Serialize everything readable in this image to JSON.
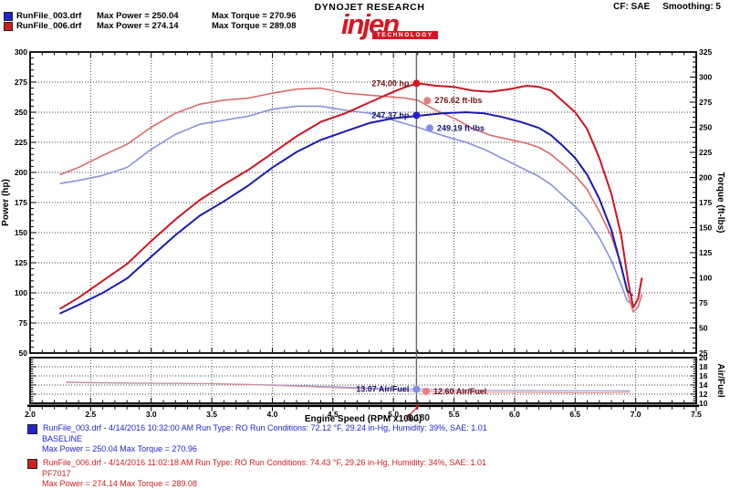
{
  "header": {
    "brand_top": "DYNOJET RESEARCH",
    "brand_name": "injen",
    "brand_sub": "TECHNOLOGY",
    "cf_label": "CF: SAE",
    "smoothing_label": "Smoothing: 5",
    "legend": [
      {
        "file": "RunFile_003.drf",
        "max_power": "Max Power = 250.04",
        "max_torque": "Max Torque = 270.96",
        "color": "#2026cc"
      },
      {
        "file": "RunFile_006.drf",
        "max_power": "Max Power = 274.14",
        "max_torque": "Max Torque = 289.08",
        "color": "#cc2020"
      }
    ]
  },
  "footer": {
    "runs": [
      {
        "color": "#2026cc",
        "file_line": "RunFile_003.drf - 4/14/2016 10:32:00 AM  Run Type: RO  Run Conditions: 72.12 °F, 29.24 in-Hg,  Humidity:  39%, SAE: 1.01",
        "name": "BASELINE",
        "max_line": "Max Power = 250.04  Max Torque = 270.96"
      },
      {
        "color": "#cc2020",
        "file_line": "RunFile_006.drf - 4/14/2016 11:02:18 AM  Run Type: RO  Run Conditions: 74.43 °F, 29.26 in-Hg,  Humidity:  34%, SAE: 1.01",
        "name": "PF7017",
        "max_line": "Max Power = 274.14  Max Torque = 289.08"
      }
    ]
  },
  "chart_data": {
    "type": "line",
    "xlabel": "Engine Speed (RPM x1000)",
    "cursor": {
      "rpm": 5.19,
      "readout": "5.180"
    },
    "axes": {
      "x": {
        "range": [
          2.0,
          7.5
        ],
        "ticks": [
          2.0,
          2.5,
          3.0,
          3.5,
          4.0,
          4.5,
          5.0,
          5.5,
          6.0,
          6.5,
          7.0,
          7.5
        ]
      },
      "hp": {
        "label": "Power (hp)",
        "range": [
          50,
          300
        ],
        "ticks": [
          300,
          275,
          250,
          225,
          200,
          175,
          150,
          125,
          100,
          75,
          50
        ]
      },
      "tq": {
        "label": "Torque (ft-lbs)",
        "range": [
          25,
          325
        ],
        "ticks": [
          325,
          300,
          275,
          250,
          225,
          200,
          175,
          150,
          125,
          100,
          75,
          50,
          25
        ]
      },
      "af": {
        "label": "Air/Fuel",
        "range": [
          10,
          20
        ],
        "ticks": [
          20,
          18,
          16,
          14,
          12,
          10
        ]
      }
    },
    "grid": {
      "x": [
        2.5,
        3.0,
        3.5,
        4.0,
        4.5,
        5.0,
        5.5,
        6.0,
        6.5,
        7.0
      ],
      "hp": [
        275,
        250,
        225,
        200,
        175,
        150,
        125,
        100,
        75
      ],
      "af": [
        18,
        16,
        14,
        12
      ]
    },
    "series": [
      {
        "id": "runfile003-torque-curve",
        "name": "RunFile_003 Torque",
        "axis": "tq",
        "color": "#8a92dd",
        "width": 1.6,
        "points": [
          [
            2.25,
            194
          ],
          [
            2.4,
            197
          ],
          [
            2.6,
            202
          ],
          [
            2.8,
            210
          ],
          [
            3.0,
            228
          ],
          [
            3.2,
            243
          ],
          [
            3.4,
            253
          ],
          [
            3.6,
            257
          ],
          [
            3.8,
            261
          ],
          [
            4.0,
            268
          ],
          [
            4.2,
            271
          ],
          [
            4.4,
            271
          ],
          [
            4.6,
            267
          ],
          [
            4.8,
            264
          ],
          [
            5.0,
            257
          ],
          [
            5.2,
            250
          ],
          [
            5.4,
            242
          ],
          [
            5.6,
            235
          ],
          [
            5.75,
            228
          ],
          [
            5.9,
            219
          ],
          [
            6.05,
            210
          ],
          [
            6.2,
            201
          ],
          [
            6.3,
            193
          ],
          [
            6.4,
            182
          ],
          [
            6.5,
            171
          ],
          [
            6.6,
            158
          ],
          [
            6.7,
            140
          ],
          [
            6.8,
            117
          ],
          [
            6.88,
            93
          ],
          [
            6.93,
            77
          ],
          [
            6.97,
            74
          ]
        ]
      },
      {
        "id": "runfile006-torque-curve",
        "name": "RunFile_006 Torque",
        "axis": "tq",
        "color": "#db6b6b",
        "width": 1.6,
        "points": [
          [
            2.25,
            203
          ],
          [
            2.4,
            210
          ],
          [
            2.6,
            222
          ],
          [
            2.8,
            233
          ],
          [
            3.0,
            250
          ],
          [
            3.2,
            264
          ],
          [
            3.4,
            273
          ],
          [
            3.6,
            277
          ],
          [
            3.8,
            279
          ],
          [
            4.0,
            284
          ],
          [
            4.2,
            288
          ],
          [
            4.4,
            289
          ],
          [
            4.6,
            284
          ],
          [
            4.8,
            282
          ],
          [
            5.0,
            280
          ],
          [
            5.1,
            279
          ],
          [
            5.2,
            277
          ],
          [
            5.35,
            267
          ],
          [
            5.5,
            259
          ],
          [
            5.65,
            249
          ],
          [
            5.8,
            242
          ],
          [
            5.95,
            238
          ],
          [
            6.1,
            234
          ],
          [
            6.2,
            230
          ],
          [
            6.3,
            223
          ],
          [
            6.4,
            213
          ],
          [
            6.5,
            202
          ],
          [
            6.6,
            188
          ],
          [
            6.7,
            166
          ],
          [
            6.8,
            141
          ],
          [
            6.88,
            113
          ],
          [
            6.94,
            82
          ],
          [
            6.98,
            66
          ],
          [
            7.02,
            71
          ],
          [
            7.05,
            83
          ]
        ]
      },
      {
        "id": "runfile003-power-curve",
        "name": "RunFile_003 Power",
        "axis": "hp",
        "color": "#1a1ab4",
        "width": 2,
        "points": [
          [
            2.25,
            83
          ],
          [
            2.4,
            90
          ],
          [
            2.6,
            100
          ],
          [
            2.8,
            112
          ],
          [
            3.0,
            130
          ],
          [
            3.2,
            148
          ],
          [
            3.4,
            164
          ],
          [
            3.6,
            176
          ],
          [
            3.8,
            189
          ],
          [
            4.0,
            204
          ],
          [
            4.2,
            217
          ],
          [
            4.4,
            227
          ],
          [
            4.6,
            234
          ],
          [
            4.8,
            241
          ],
          [
            5.0,
            245
          ],
          [
            5.2,
            247
          ],
          [
            5.4,
            249
          ],
          [
            5.6,
            250
          ],
          [
            5.75,
            249
          ],
          [
            5.9,
            246
          ],
          [
            6.05,
            242
          ],
          [
            6.2,
            237
          ],
          [
            6.3,
            231
          ],
          [
            6.4,
            222
          ],
          [
            6.5,
            212
          ],
          [
            6.6,
            198
          ],
          [
            6.7,
            178
          ],
          [
            6.8,
            152
          ],
          [
            6.88,
            122
          ],
          [
            6.93,
            102
          ],
          [
            6.97,
            98
          ]
        ]
      },
      {
        "id": "runfile006-power-curve",
        "name": "RunFile_006 Power",
        "axis": "hp",
        "color": "#cc1520",
        "width": 2,
        "points": [
          [
            2.25,
            87
          ],
          [
            2.4,
            96
          ],
          [
            2.6,
            110
          ],
          [
            2.8,
            124
          ],
          [
            3.0,
            143
          ],
          [
            3.2,
            161
          ],
          [
            3.4,
            177
          ],
          [
            3.6,
            190
          ],
          [
            3.8,
            202
          ],
          [
            4.0,
            216
          ],
          [
            4.2,
            230
          ],
          [
            4.4,
            242
          ],
          [
            4.6,
            249
          ],
          [
            4.8,
            258
          ],
          [
            5.0,
            267
          ],
          [
            5.1,
            271
          ],
          [
            5.2,
            274
          ],
          [
            5.35,
            272
          ],
          [
            5.5,
            271
          ],
          [
            5.65,
            268
          ],
          [
            5.8,
            267
          ],
          [
            5.95,
            269
          ],
          [
            6.1,
            272
          ],
          [
            6.2,
            271
          ],
          [
            6.3,
            268
          ],
          [
            6.4,
            259
          ],
          [
            6.5,
            250
          ],
          [
            6.6,
            236
          ],
          [
            6.7,
            212
          ],
          [
            6.8,
            182
          ],
          [
            6.88,
            148
          ],
          [
            6.94,
            108
          ],
          [
            6.98,
            88
          ],
          [
            7.02,
            95
          ],
          [
            7.05,
            112
          ]
        ]
      },
      {
        "id": "runfile003-airfuel-curve",
        "name": "RunFile_003 Air/Fuel",
        "axis": "af",
        "color": "#9098e0",
        "width": 1.1,
        "points": [
          [
            2.3,
            14.55
          ],
          [
            2.7,
            14.4
          ],
          [
            3.1,
            14.35
          ],
          [
            3.5,
            14.3
          ],
          [
            3.9,
            14.1
          ],
          [
            4.3,
            13.8
          ],
          [
            4.7,
            13.45
          ],
          [
            5.0,
            13.2
          ],
          [
            5.19,
            13.07
          ],
          [
            5.5,
            12.9
          ],
          [
            5.8,
            12.82
          ],
          [
            6.1,
            12.78
          ],
          [
            6.4,
            12.72
          ],
          [
            6.7,
            12.7
          ],
          [
            6.95,
            12.75
          ]
        ]
      },
      {
        "id": "runfile006-airfuel-curve",
        "name": "RunFile_006 Air/Fuel",
        "axis": "af",
        "color": "#e09090",
        "width": 1.1,
        "points": [
          [
            2.3,
            14.65
          ],
          [
            2.7,
            14.5
          ],
          [
            3.1,
            14.4
          ],
          [
            3.5,
            14.32
          ],
          [
            3.9,
            14.0
          ],
          [
            4.3,
            13.65
          ],
          [
            4.7,
            13.25
          ],
          [
            5.0,
            12.9
          ],
          [
            5.19,
            12.6
          ],
          [
            5.5,
            12.45
          ],
          [
            5.8,
            12.4
          ],
          [
            6.1,
            12.38
          ],
          [
            6.4,
            12.33
          ],
          [
            6.7,
            12.3
          ],
          [
            6.95,
            12.42
          ]
        ]
      }
    ],
    "annotations": [
      {
        "id": "marker-red-power",
        "label": "274.00 hp",
        "axis": "hp",
        "value": 274.0,
        "dot_rpm": 5.19,
        "side": "left",
        "color": "#701512",
        "dot_color": "#d41823"
      },
      {
        "id": "marker-red-torque",
        "label": "276.62 ft-lbs",
        "axis": "tq",
        "value": 276.62,
        "dot_rpm": 5.28,
        "side": "right",
        "color": "#701512",
        "dot_color": "#e87f7f"
      },
      {
        "id": "marker-blue-power",
        "label": "247.37 hp",
        "axis": "hp",
        "value": 247.37,
        "dot_rpm": 5.19,
        "side": "left",
        "color": "#131670",
        "dot_color": "#2020cc"
      },
      {
        "id": "marker-blue-torque",
        "label": "249.19 ft-lbs",
        "axis": "tq",
        "value": 249.19,
        "dot_rpm": 5.3,
        "side": "right",
        "color": "#131670",
        "dot_color": "#7f8fe8"
      },
      {
        "id": "marker-blue-af",
        "label": "13.07 Air/Fuel",
        "axis": "af",
        "value": 13.07,
        "dot_rpm": 5.19,
        "side": "left",
        "color": "#131670",
        "dot_color": "#7f8fe8"
      },
      {
        "id": "marker-red-af",
        "label": "12.60 Air/Fuel",
        "axis": "af",
        "value": 12.6,
        "dot_rpm": 5.27,
        "side": "right",
        "color": "#701512",
        "dot_color": "#e87f7f"
      }
    ]
  }
}
